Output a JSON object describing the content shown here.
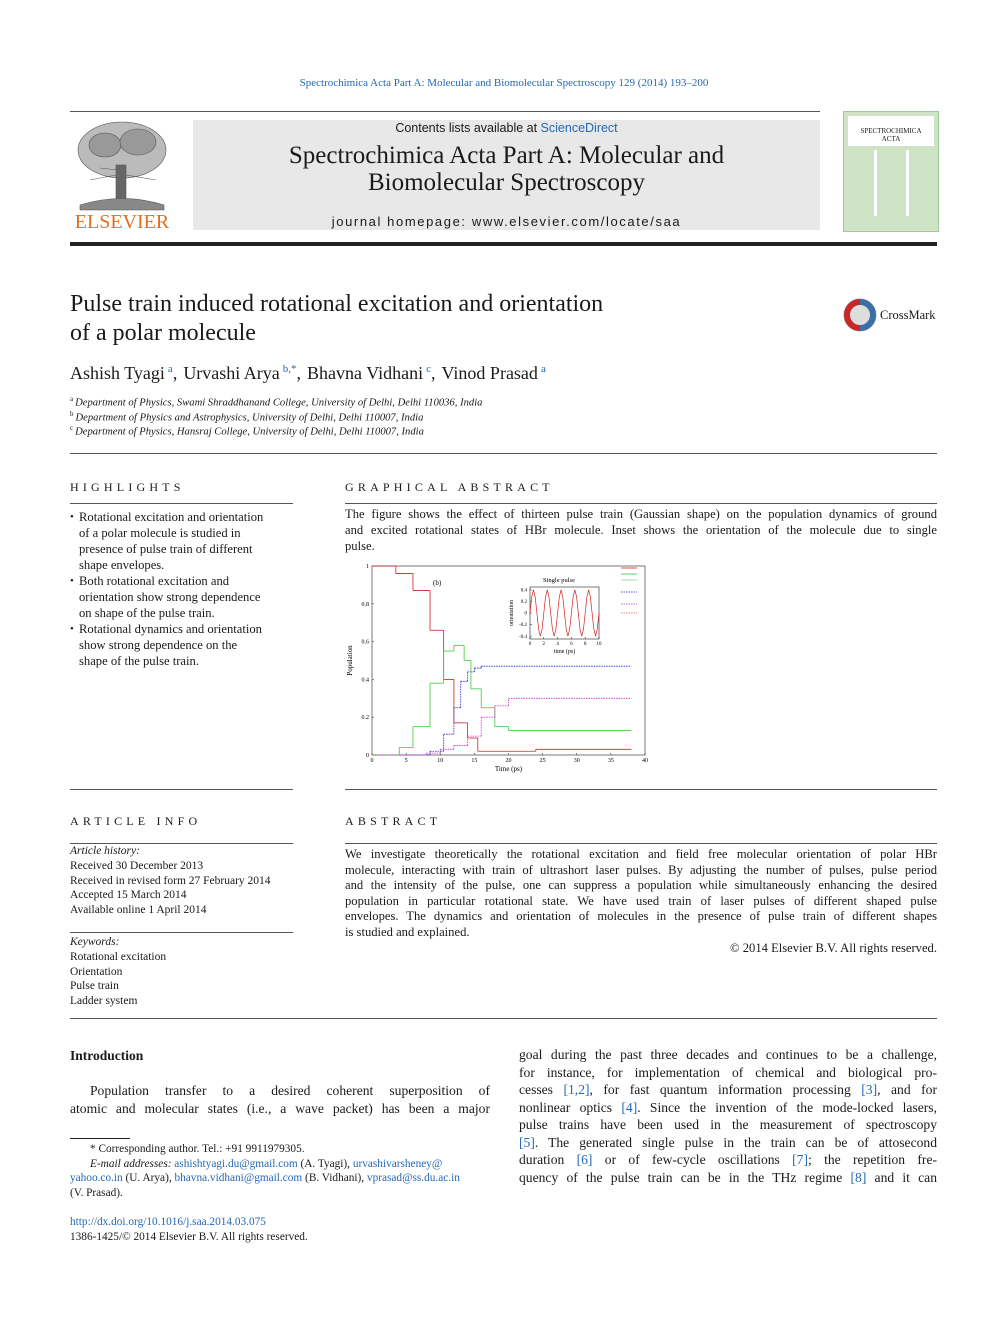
{
  "header": {
    "citation": "Spectrochimica Acta Part A: Molecular and Biomolecular Spectroscopy 129 (2014) 193–200",
    "contents_prefix": "Contents lists available at ",
    "sciencedirect": "ScienceDirect",
    "journal_title": [
      "Spectrochimica Acta Part A: Molecular and",
      "Biomolecular Spectroscopy"
    ],
    "homepage": "journal homepage: www.elsevier.com/locate/saa",
    "publisher": "ELSEVIER",
    "cover_title": [
      "SPECTROCHIMICA",
      "ACTA"
    ]
  },
  "article": {
    "title": [
      "Pulse train induced rotational excitation and orientation",
      "of a polar molecule"
    ],
    "crossmark": "CrossMark",
    "authors": [
      {
        "name": "Ashish Tyagi",
        "affil": "a",
        "after": ","
      },
      {
        "name": "Urvashi Arya",
        "affil": "b,*",
        "after": ","
      },
      {
        "name": "Bhavna Vidhani",
        "affil": "c",
        "after": ","
      },
      {
        "name": "Vinod Prasad",
        "affil": "a"
      }
    ],
    "affiliations": [
      {
        "label": "a",
        "text": "Department of Physics, Swami Shraddhanand College, University of Delhi, Delhi 110036, India"
      },
      {
        "label": "b",
        "text": "Department of Physics and Astrophysics, University of Delhi, Delhi 110007, India"
      },
      {
        "label": "c",
        "text": "Department of Physics, Hansraj College, University of Delhi, Delhi 110007, India"
      }
    ]
  },
  "highlights": {
    "heading": "HIGHLIGHTS",
    "items": [
      [
        "Rotational excitation and orientation",
        "of a polar molecule is studied in",
        "presence of pulse train of different",
        "shape envelopes."
      ],
      [
        "Both rotational excitation and",
        "orientation show strong dependence",
        "on shape of the pulse train."
      ],
      [
        "Rotational dynamics and orientation",
        "show strong dependence on the",
        "shape of the pulse train."
      ]
    ]
  },
  "graphical_abstract": {
    "heading": "GRAPHICAL ABSTRACT",
    "lines": [
      "The figure shows the effect of thirteen pulse train (Gaussian shape) on the population dynamics of ground",
      "and excited rotational states of HBr molecule. Inset shows the orientation of the molecule due to single",
      "pulse."
    ],
    "figure": {
      "type": "line",
      "step": true,
      "panel_label": "(b)",
      "xlabel": "Time (ps)",
      "ylabel": "Population",
      "xlim": [
        0,
        40
      ],
      "ylim": [
        0,
        1
      ],
      "xticks": [
        0,
        5,
        10,
        15,
        20,
        25,
        30,
        35,
        40
      ],
      "yticks": [
        0,
        0.2,
        0.4,
        0.6,
        0.8,
        1
      ],
      "series": [
        {
          "color": "#d42020",
          "dash": "none",
          "x": [
            0,
            3.5,
            6,
            8.5,
            10.5,
            12,
            14,
            15.5,
            24,
            38
          ],
          "values": [
            1,
            0.96,
            0.87,
            0.66,
            0.4,
            0.17,
            0.09,
            0.02,
            0.03,
            0.03
          ]
        },
        {
          "color": "#3ccc3c",
          "dash": "none",
          "x": [
            0,
            4,
            6,
            8.5,
            10.5,
            12,
            13.5,
            14.5,
            16,
            18,
            20,
            38
          ],
          "values": [
            0,
            0.04,
            0.15,
            0.38,
            0.55,
            0.58,
            0.5,
            0.35,
            0.25,
            0.15,
            0.13,
            0.13
          ]
        },
        {
          "color": "#2222cc",
          "dash": "1.5,1",
          "x": [
            0,
            8.5,
            10.5,
            12,
            13,
            14,
            15,
            16,
            38
          ],
          "values": [
            0,
            0.02,
            0.11,
            0.25,
            0.39,
            0.44,
            0.46,
            0.47,
            0.47
          ]
        },
        {
          "color": "#cc33cc",
          "dash": "1.5,1",
          "x": [
            0,
            8,
            10,
            12,
            14,
            16,
            18,
            20,
            38
          ],
          "values": [
            0,
            0.01,
            0.03,
            0.05,
            0.1,
            0.2,
            0.26,
            0.3,
            0.3
          ]
        }
      ],
      "inset": {
        "title": "Single pulse",
        "xlabel": "time (ps)",
        "ylabel": "orientation",
        "xlim": [
          0,
          10
        ],
        "ylim": [
          -0.45,
          0.45
        ],
        "xticks": [
          0,
          2,
          4,
          6,
          8,
          10
        ],
        "yticks": [
          0.4,
          0.2,
          0,
          -0.2,
          -0.4
        ],
        "series": [
          {
            "color": "#d42020",
            "x": [
              0,
              0.25,
              0.5,
              0.75,
              1,
              1.25,
              1.5,
              1.75,
              2,
              2.25,
              2.5,
              2.75,
              3,
              3.25,
              3.5,
              3.75,
              4,
              4.25,
              4.5,
              4.75,
              5,
              5.25,
              5.5,
              5.75,
              6,
              6.25,
              6.5,
              6.75,
              7,
              7.25,
              7.5,
              7.75,
              8,
              8.25,
              8.5,
              8.75,
              9,
              9.25,
              9.5,
              9.75,
              10
            ],
            "values": [
              0,
              0.28,
              0.4,
              0.28,
              0,
              -0.28,
              -0.4,
              -0.28,
              0,
              0.28,
              0.4,
              0.28,
              0,
              -0.28,
              -0.4,
              -0.28,
              0,
              0.28,
              0.4,
              0.28,
              0,
              -0.28,
              -0.4,
              -0.28,
              0,
              0.28,
              0.4,
              0.28,
              0,
              -0.28,
              -0.4,
              -0.28,
              0,
              0.28,
              0.4,
              0.28,
              0,
              -0.28,
              -0.4,
              -0.28,
              0
            ]
          }
        ]
      }
    }
  },
  "article_info": {
    "heading": "ARTICLE INFO",
    "history_label": "Article history:",
    "history": [
      "Received 30 December 2013",
      "Received in revised form 27 February 2014",
      "Accepted 15 March 2014",
      "Available online 1 April 2014"
    ],
    "keywords_label": "Keywords:",
    "keywords": [
      "Rotational excitation",
      "Orientation",
      "Pulse train",
      "Ladder system"
    ]
  },
  "abstract": {
    "heading": "ABSTRACT",
    "lines": [
      "We investigate theoretically the rotational excitation and field free molecular orientation of polar HBr",
      "molecule, interacting with train of ultrashort laser pulses. By adjusting the number of pulses, pulse period",
      "and the intensity of the pulse, one can suppress a population while simultaneously enhancing the desired",
      "population in particular rotational state. We have used train of laser pulses of different shaped pulse",
      "envelopes. The dynamics and orientation of molecules in the presence of pulse train of different shapes",
      "is studied and explained."
    ],
    "copyright": "© 2014 Elsevier B.V. All rights reserved."
  },
  "body": {
    "heading": "Introduction",
    "left_lines": [
      "Population transfer to a desired coherent superposition of",
      "atomic and molecular states (i.e., a wave packet) has been a major"
    ],
    "right_lines": [
      "goal during the past three decades and continues to be a challenge,",
      "for instance, for implementation of chemical and biological pro-",
      "cesses [1,2], for fast quantum information processing [3], and for",
      "nonlinear optics [4]. Since the invention of the mode-locked lasers,",
      "pulse trains have been used in the measurement of spectroscopy",
      "[5]. The generated single pulse in the train can be of attosecond",
      "duration [6] or of few-cycle oscillations [7]; the repetition fre-",
      "quency of the pulse train can be in the THz regime [8] and it can"
    ]
  },
  "footnote": {
    "lines": [
      [
        {
          "text": "* Corresponding author. Tel.: +91 9911979305."
        }
      ],
      [
        {
          "text": "E-mail addresses: ",
          "italic": true
        },
        {
          "text": "ashishtyagi.du@gmail.com",
          "link": true
        },
        {
          "text": " (A. Tyagi), "
        },
        {
          "text": "urvashivarsheney@",
          "link": true
        }
      ],
      [
        {
          "text": "yahoo.co.in",
          "link": true
        },
        {
          "text": " (U. Arya), "
        },
        {
          "text": "bhavna.vidhani@gmail.com",
          "link": true
        },
        {
          "text": " (B. Vidhani), "
        },
        {
          "text": "vprasad@ss.du.ac.in",
          "link": true
        }
      ],
      [
        {
          "text": "(V. Prasad)."
        }
      ]
    ]
  },
  "footer": {
    "doi": "http://dx.doi.org/10.1016/j.saa.2014.03.075",
    "issn": "1386-1425/© 2014 Elsevier B.V. All rights reserved."
  }
}
